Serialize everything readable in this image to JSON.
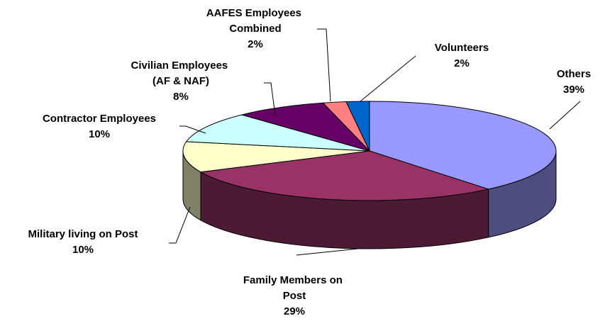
{
  "chart_data": {
    "type": "pie3d",
    "categories": [
      "Others",
      "Family Members on Post",
      "Military living on Post",
      "Contractor Employees",
      "Civilian Employees (AF & NAF)",
      "AAFES Employees Combined",
      "Volunteers"
    ],
    "values": [
      39,
      29,
      10,
      10,
      8,
      2,
      2
    ],
    "value_labels": [
      "39%",
      "29%",
      "10%",
      "10%",
      "8%",
      "2%",
      "2%"
    ],
    "colors": [
      "#9999ff",
      "#993366",
      "#ffffcc",
      "#ccffff",
      "#660066",
      "#ff8080",
      "#0066cc"
    ]
  }
}
